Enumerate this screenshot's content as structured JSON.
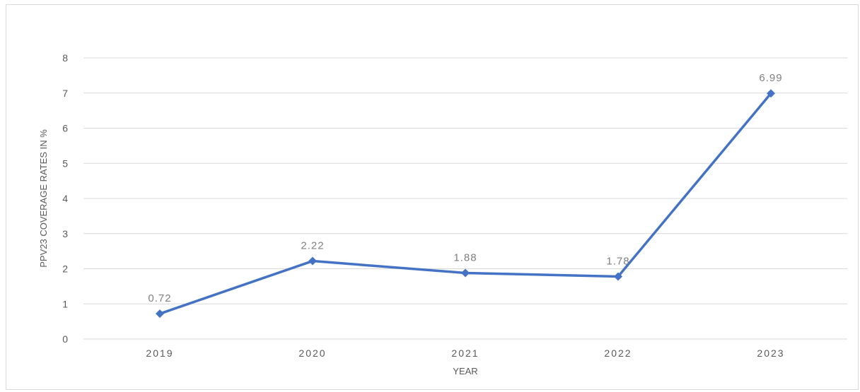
{
  "chart_data": {
    "type": "line",
    "title": "",
    "xlabel": "YEAR",
    "ylabel": "PPV23 COVERAGE RATES IN %",
    "categories": [
      "2019",
      "2020",
      "2021",
      "2022",
      "2023"
    ],
    "series": [
      {
        "values": [
          0.72,
          2.22,
          1.88,
          1.78,
          6.99
        ],
        "data_labels": [
          "0.72",
          "2.22",
          "1.88",
          "1.78",
          "6.99"
        ],
        "color": "#4472c4",
        "marker": "diamond"
      }
    ],
    "ylim": [
      0,
      8
    ],
    "y_ticks": [
      "0",
      "1",
      "2",
      "3",
      "4",
      "5",
      "6",
      "7",
      "8"
    ],
    "grid": true,
    "legend": "none"
  },
  "colors": {
    "gridline": "#d9d9d9",
    "series": "#4472c4",
    "tick_text": "#595959",
    "data_label_text": "#7f7f7f"
  }
}
